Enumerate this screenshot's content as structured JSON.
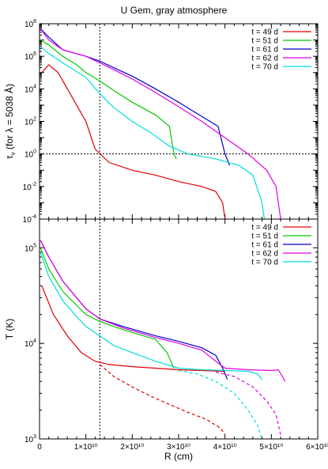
{
  "title": "U Gem, gray atmosphere",
  "colors": {
    "t49": "#e00000",
    "t51": "#00cc00",
    "t61": "#0000cc",
    "t62": "#e000e0",
    "t70": "#00dddd"
  },
  "chart_data": [
    {
      "panel": "top",
      "type": "line",
      "ylabel": "τ_ν (for λ = 5038 Å)",
      "xlim": [
        0,
        60000000000.0
      ],
      "ylim_log10": [
        -4,
        8
      ],
      "yscale": "log",
      "reference_lines": {
        "x": 13000000000.0,
        "y": 1
      },
      "legend": [
        "t = 49 d",
        "t = 51 d",
        "t = 61 d",
        "t = 62 d",
        "t = 70 d"
      ],
      "series": [
        {
          "name": "t = 49 d",
          "color_key": "t49",
          "dashed": false,
          "points": [
            [
              500000000.0,
              100000.0
            ],
            [
              2000000000.0,
              300000.0
            ],
            [
              4000000000.0,
              100000.0
            ],
            [
              6000000000.0,
              10000.0
            ],
            [
              8000000000.0,
              1000.0
            ],
            [
              10000000000.0,
              100.0
            ],
            [
              12000000000.0,
              2
            ],
            [
              15000000000.0,
              0.3
            ],
            [
              20000000000.0,
              0.1
            ],
            [
              25000000000.0,
              0.05
            ],
            [
              30000000000.0,
              0.02
            ],
            [
              35000000000.0,
              0.01
            ],
            [
              38000000000.0,
              0.005
            ],
            [
              39500000000.0,
              0.001
            ],
            [
              40000000000.0,
              0.0001
            ]
          ]
        },
        {
          "name": "t = 51 d",
          "color_key": "t51",
          "dashed": false,
          "points": [
            [
              200000000.0,
              10000000.0
            ],
            [
              2000000000.0,
              5000000.0
            ],
            [
              5000000000.0,
              1000000.0
            ],
            [
              8000000000.0,
              300000.0
            ],
            [
              10000000000.0,
              100000.0
            ],
            [
              13000000000.0,
              30000.0
            ],
            [
              16000000000.0,
              8000.0
            ],
            [
              20000000000.0,
              1500.0
            ],
            [
              25000000000.0,
              250.0
            ],
            [
              28000000000.0,
              50.0
            ],
            [
              29000000000.0,
              1
            ],
            [
              29500000000.0,
              0.5
            ]
          ]
        },
        {
          "name": "t = 61 d",
          "color_key": "t61",
          "dashed": false,
          "points": [
            [
              200000000.0,
              50000000.0
            ],
            [
              2000000000.0,
              15000000.0
            ],
            [
              5000000000.0,
              2500000.0
            ],
            [
              10000000000.0,
              1000000.0
            ],
            [
              13000000000.0,
              500000.0
            ],
            [
              16000000000.0,
              200000.0
            ],
            [
              20000000000.0,
              60000.0
            ],
            [
              25000000000.0,
              10000.0
            ],
            [
              30000000000.0,
              1500.0
            ],
            [
              35000000000.0,
              200.0
            ],
            [
              38500000000.0,
              50.0
            ],
            [
              40000000000.0,
              1
            ],
            [
              41000000000.0,
              0.2
            ]
          ]
        },
        {
          "name": "t = 62 d",
          "color_key": "t62",
          "dashed": false,
          "points": [
            [
              200000000.0,
              50000000.0
            ],
            [
              2000000000.0,
              10000000.0
            ],
            [
              5000000000.0,
              2500000.0
            ],
            [
              10000000000.0,
              1000000.0
            ],
            [
              13000000000.0,
              400000.0
            ],
            [
              16000000000.0,
              150000.0
            ],
            [
              20000000000.0,
              40000.0
            ],
            [
              25000000000.0,
              6000.0
            ],
            [
              30000000000.0,
              800.0
            ],
            [
              35000000000.0,
              100.0
            ],
            [
              40000000000.0,
              10.0
            ],
            [
              45000000000.0,
              1
            ],
            [
              49000000000.0,
              0.1
            ],
            [
              51000000000.0,
              0.01
            ],
            [
              52000000000.0,
              0.0001
            ]
          ]
        },
        {
          "name": "t = 70 d",
          "color_key": "t70",
          "dashed": false,
          "points": [
            [
              200000000.0,
              4000000.0
            ],
            [
              2000000000.0,
              1500000.0
            ],
            [
              5000000000.0,
              400000.0
            ],
            [
              10000000000.0,
              50000.0
            ],
            [
              13000000000.0,
              5000.0
            ],
            [
              16000000000.0,
              700.0
            ],
            [
              20000000000.0,
              100.0
            ],
            [
              24000000000.0,
              20.0
            ],
            [
              28000000000.0,
              3
            ],
            [
              32000000000.0,
              1
            ],
            [
              38000000000.0,
              0.5
            ],
            [
              43000000000.0,
              0.2
            ],
            [
              46000000000.0,
              0.05
            ],
            [
              48000000000.0,
              0.001
            ],
            [
              48500000000.0,
              0.0001
            ]
          ]
        }
      ]
    },
    {
      "panel": "bottom",
      "type": "line",
      "xlabel": "R (cm)",
      "ylabel": "T (K)",
      "xlim": [
        0,
        60000000000.0
      ],
      "ylim_log10": [
        3,
        5.3
      ],
      "yscale": "log",
      "reference_lines": {
        "x": 13000000000.0
      },
      "x_tick_labels": [
        "0",
        "1×10¹⁰",
        "2×10¹⁰",
        "3×10¹⁰",
        "4×10¹⁰",
        "5×10¹⁰",
        "6×10¹⁰"
      ],
      "legend": [
        "t = 49 d",
        "t = 51 d",
        "t = 61 d",
        "t = 62 d",
        "t = 70 d"
      ],
      "series": [
        {
          "name": "t = 49 d",
          "color_key": "t49",
          "dashed": false,
          "points": [
            [
              500000000.0,
              40000.0
            ],
            [
              3000000000.0,
              20000.0
            ],
            [
              6000000000.0,
              12000.0
            ],
            [
              9000000000.0,
              8000.0
            ],
            [
              12000000000.0,
              6500.0
            ],
            [
              15000000000.0,
              6000.0
            ],
            [
              20000000000.0,
              5700.0
            ],
            [
              25000000000.0,
              5500.0
            ],
            [
              30000000000.0,
              5300.0
            ],
            [
              35000000000.0,
              5200.0
            ],
            [
              40000000000.0,
              5100.0
            ]
          ]
        },
        {
          "name": "",
          "color_key": "t49",
          "dashed": true,
          "points": [
            [
              13000000000.0,
              6000.0
            ],
            [
              16000000000.0,
              4500.0
            ],
            [
              20000000000.0,
              3500.0
            ],
            [
              24000000000.0,
              2800.0
            ],
            [
              28000000000.0,
              2300.0
            ],
            [
              32000000000.0,
              1900.0
            ],
            [
              36000000000.0,
              1600.0
            ],
            [
              39000000000.0,
              1300.0
            ],
            [
              40000000000.0,
              1100.0
            ]
          ]
        },
        {
          "name": "t = 51 d",
          "color_key": "t51",
          "dashed": false,
          "points": [
            [
              200000000.0,
              100000.0
            ],
            [
              2000000000.0,
              60000.0
            ],
            [
              5000000000.0,
              35000.0
            ],
            [
              8000000000.0,
              25000.0
            ],
            [
              10000000000.0,
              20000.0
            ],
            [
              13000000000.0,
              17000.0
            ],
            [
              16000000000.0,
              15000.0
            ],
            [
              20000000000.0,
              13000.0
            ],
            [
              25000000000.0,
              11000.0
            ],
            [
              27500000000.0,
              8000.0
            ],
            [
              29000000000.0,
              5500.0
            ]
          ]
        },
        {
          "name": "t = 61 d",
          "color_key": "t61",
          "dashed": false,
          "points": [
            [
              200000000.0,
              120000.0
            ],
            [
              2000000000.0,
              80000.0
            ],
            [
              5000000000.0,
              45000.0
            ],
            [
              8000000000.0,
              30000.0
            ],
            [
              10000000000.0,
              23000.0
            ],
            [
              13000000000.0,
              18000.0
            ],
            [
              18000000000.0,
              15000.0
            ],
            [
              25000000000.0,
              12000.0
            ],
            [
              30000000000.0,
              10500.0
            ],
            [
              35000000000.0,
              9000.0
            ],
            [
              38000000000.0,
              7500.0
            ],
            [
              39500000000.0,
              5500.0
            ],
            [
              40500000000.0,
              4200.0
            ]
          ]
        },
        {
          "name": "t = 62 d",
          "color_key": "t62",
          "dashed": false,
          "points": [
            [
              200000000.0,
              120000.0
            ],
            [
              2000000000.0,
              80000.0
            ],
            [
              5000000000.0,
              45000.0
            ],
            [
              8000000000.0,
              30000.0
            ],
            [
              10000000000.0,
              23000.0
            ],
            [
              13000000000.0,
              18000.0
            ],
            [
              18000000000.0,
              14500.0
            ],
            [
              25000000000.0,
              11500.0
            ],
            [
              30000000000.0,
              10000.0
            ],
            [
              35000000000.0,
              8500.0
            ],
            [
              38000000000.0,
              6500.0
            ],
            [
              40000000000.0,
              5500.0
            ],
            [
              45000000000.0,
              5300.0
            ],
            [
              50000000000.0,
              5200.0
            ],
            [
              51500000000.0,
              5300.0
            ],
            [
              53000000000.0,
              4000.0
            ]
          ]
        },
        {
          "name": "",
          "color_key": "t62",
          "dashed": true,
          "points": [
            [
              38000000000.0,
              5000.0
            ],
            [
              42000000000.0,
              4500.0
            ],
            [
              46000000000.0,
              3500.0
            ],
            [
              49000000000.0,
              2500.0
            ],
            [
              51000000000.0,
              1800.0
            ],
            [
              52000000000.0,
              1100.0
            ]
          ]
        },
        {
          "name": "t = 70 d",
          "color_key": "t70",
          "dashed": false,
          "points": [
            [
              200000000.0,
              90000.0
            ],
            [
              2000000000.0,
              50000.0
            ],
            [
              5000000000.0,
              28000.0
            ],
            [
              8000000000.0,
              19000.0
            ],
            [
              10000000000.0,
              15000.0
            ],
            [
              13000000000.0,
              12000.0
            ],
            [
              16000000000.0,
              9500.0
            ],
            [
              20000000000.0,
              8000.0
            ],
            [
              25000000000.0,
              6500.0
            ],
            [
              30000000000.0,
              5500.0
            ],
            [
              35000000000.0,
              5300.0
            ],
            [
              40000000000.0,
              5200.0
            ],
            [
              45000000000.0,
              5100.0
            ],
            [
              47000000000.0,
              4800.0
            ],
            [
              48000000000.0,
              4200.0
            ]
          ]
        },
        {
          "name": "",
          "color_key": "t70",
          "dashed": true,
          "points": [
            [
              30000000000.0,
              5200.0
            ],
            [
              34000000000.0,
              4800.0
            ],
            [
              38000000000.0,
              4000.0
            ],
            [
              42000000000.0,
              3000.0
            ],
            [
              45000000000.0,
              2000.0
            ],
            [
              47000000000.0,
              1400.0
            ],
            [
              48000000000.0,
              1000.0
            ]
          ]
        }
      ]
    }
  ]
}
